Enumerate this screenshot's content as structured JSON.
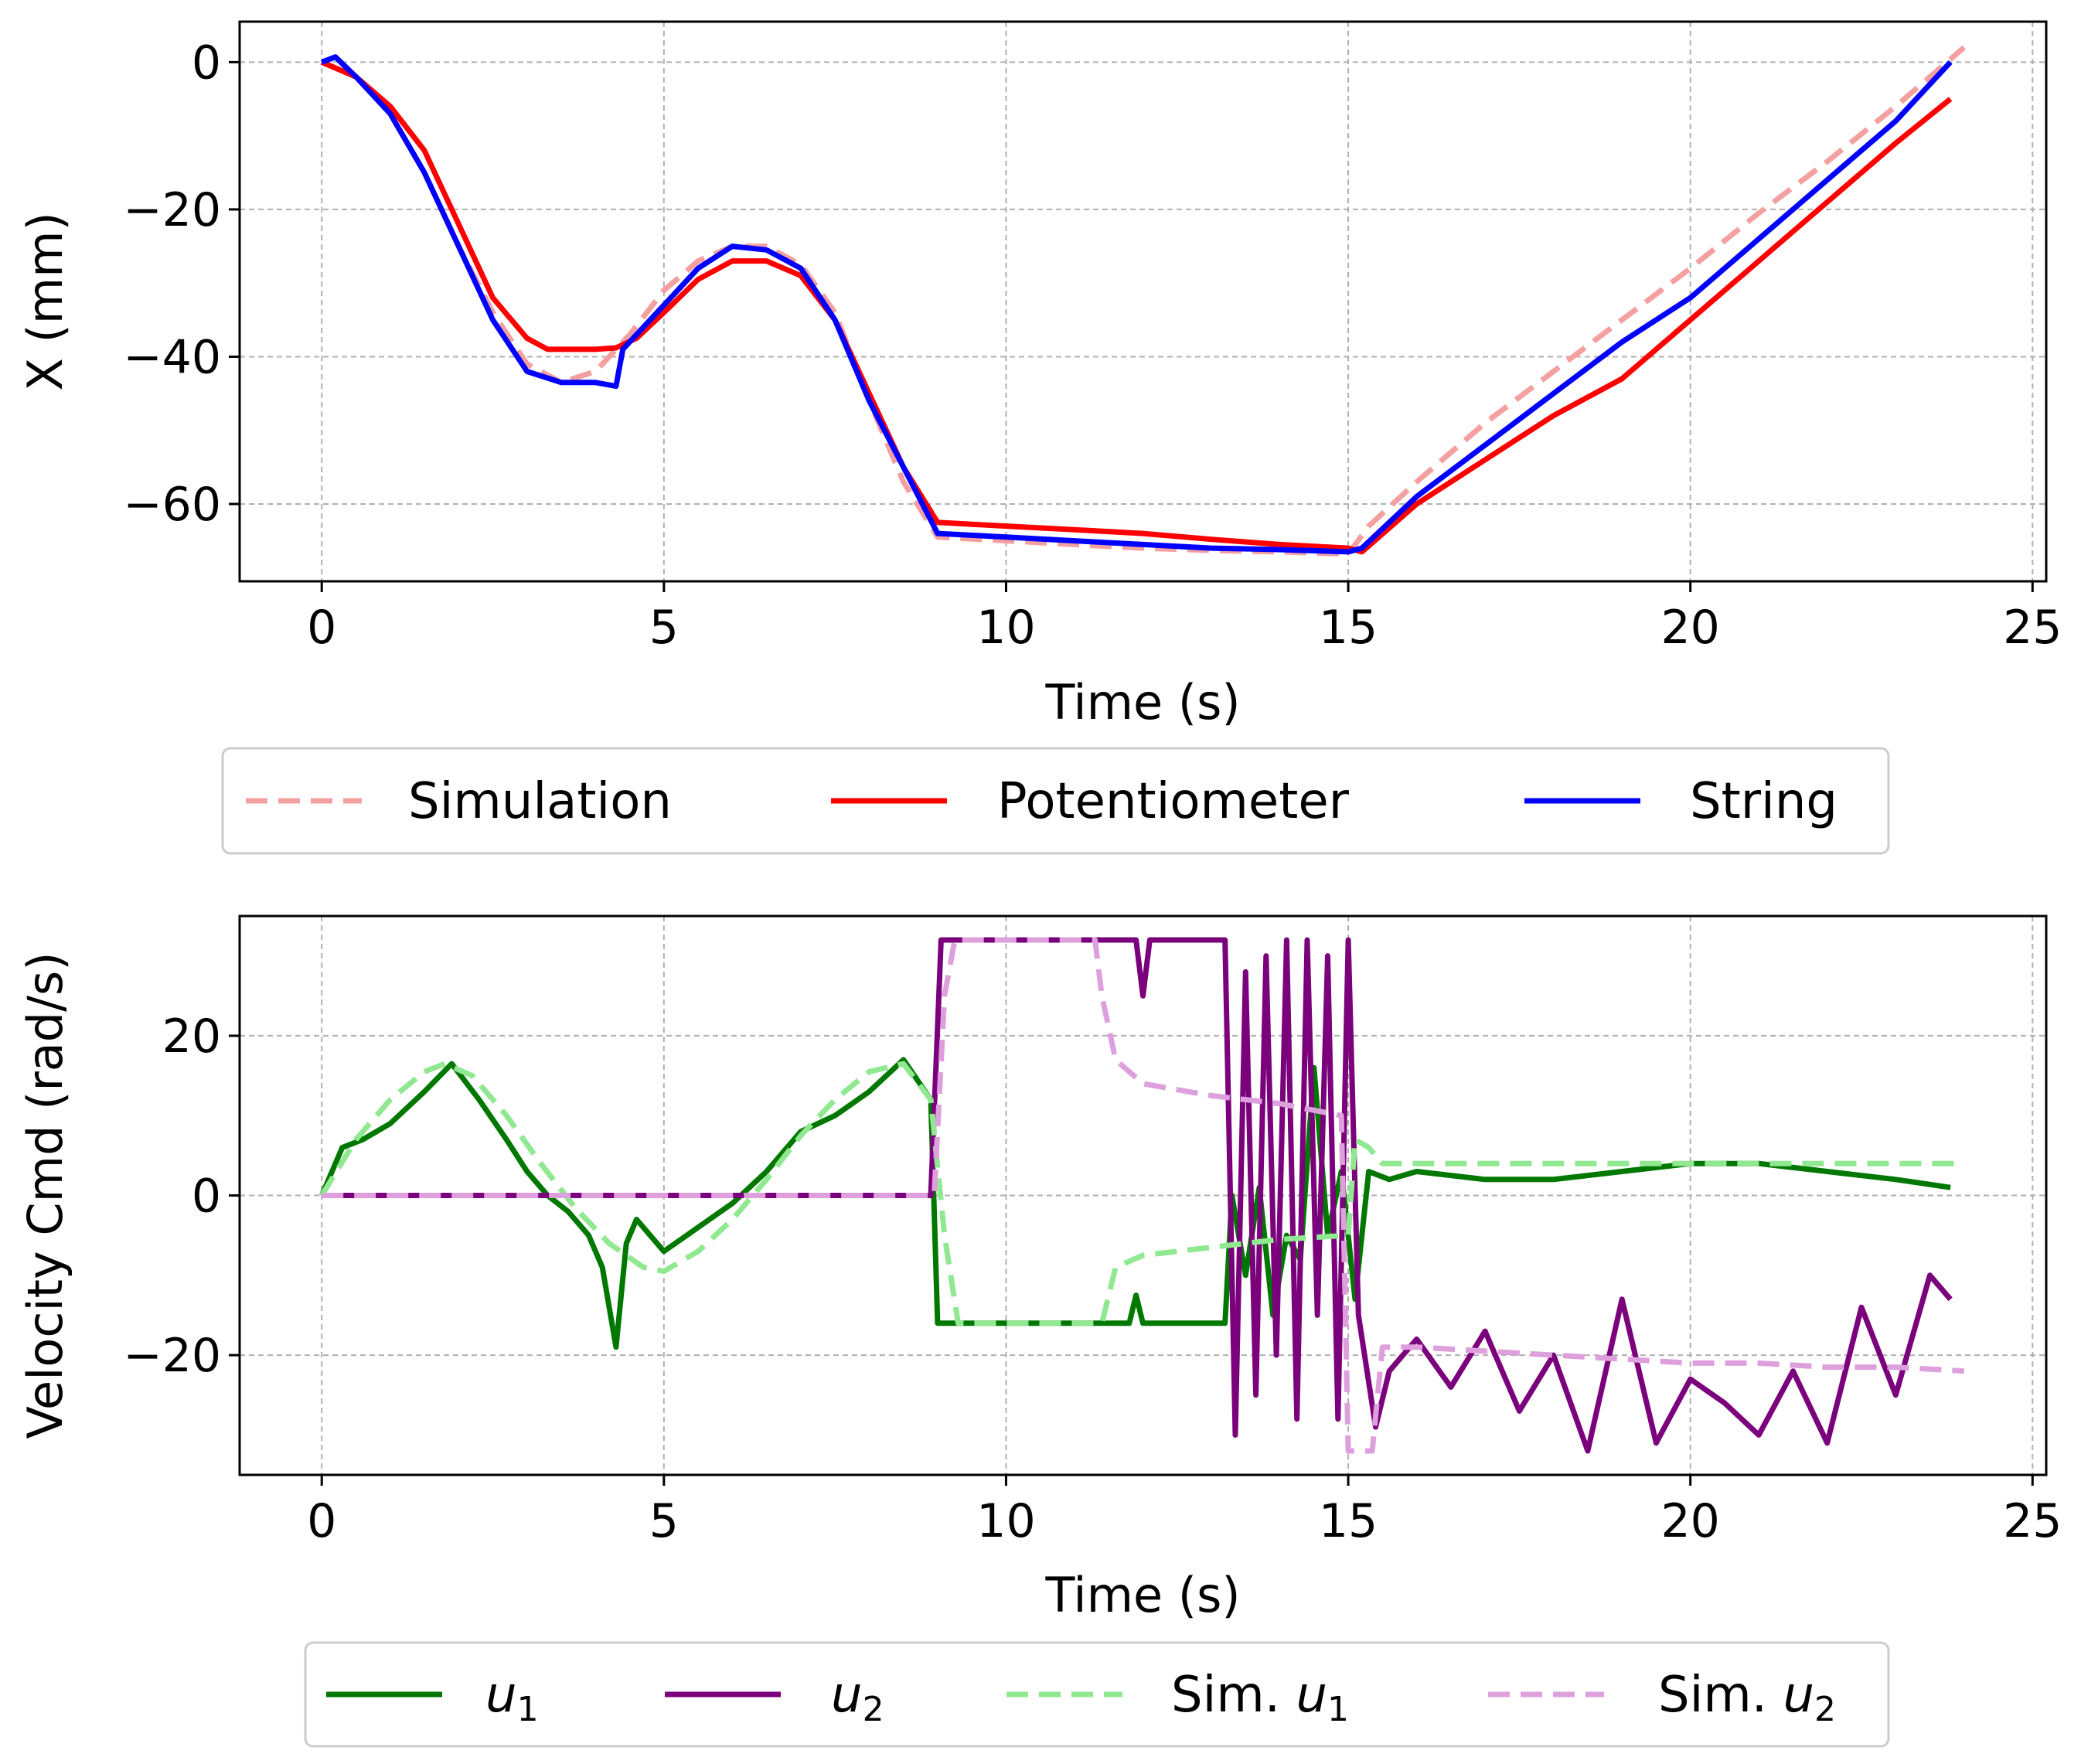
{
  "chart_data": [
    {
      "type": "line",
      "xlabel": "Time (s)",
      "ylabel": "X (mm)",
      "xlim": [
        -1.2,
        25.2
      ],
      "ylim": [
        -70.5,
        5.5
      ],
      "xticks": [
        0,
        5,
        10,
        15,
        20,
        25
      ],
      "xtick_labels": [
        "0",
        "5",
        "10",
        "15",
        "20",
        "25"
      ],
      "yticks": [
        0,
        -20,
        -40,
        -60
      ],
      "ytick_labels": [
        "0",
        "−20",
        "−40",
        "−60"
      ],
      "grid": true,
      "legend_position": "below",
      "series": [
        {
          "name": "Simulation",
          "color": "#f4a0a0",
          "style": "dashed",
          "x": [
            0,
            0.5,
            1,
            1.5,
            2,
            2.5,
            3,
            3.5,
            4,
            4.5,
            5,
            5.5,
            6,
            6.5,
            7,
            7.5,
            8,
            8.5,
            9,
            10,
            11,
            12,
            13,
            14,
            15,
            15.3,
            16,
            17,
            18,
            19,
            20,
            21,
            22,
            23,
            24
          ],
          "y": [
            0,
            -2,
            -7,
            -15,
            -25,
            -34,
            -41,
            -43.5,
            -42,
            -37,
            -31,
            -27,
            -25,
            -25,
            -27.5,
            -34,
            -46,
            -57,
            -64.5,
            -65,
            -65.5,
            -66,
            -66.3,
            -66.5,
            -66.8,
            -63,
            -57,
            -49,
            -42,
            -35,
            -28,
            -20.5,
            -13.5,
            -6,
            2
          ]
        },
        {
          "name": "Potentiometer",
          "color": "#ff0000",
          "style": "solid",
          "x": [
            0,
            0.5,
            1,
            1.5,
            2,
            2.5,
            3,
            3.3,
            3.6,
            4,
            4.3,
            4.6,
            5,
            5.5,
            6,
            6.5,
            7,
            7.5,
            8,
            8.5,
            9,
            10,
            11,
            12,
            13,
            14,
            15,
            15.2,
            16,
            17,
            18,
            19,
            20,
            21,
            22,
            23,
            23.8
          ],
          "y": [
            0,
            -2,
            -6,
            -12,
            -22,
            -32,
            -37.5,
            -39,
            -39,
            -39,
            -38.8,
            -37.5,
            -34,
            -29.5,
            -27,
            -27,
            -29,
            -35,
            -45,
            -55,
            -62.5,
            -63,
            -63.5,
            -64,
            -64.8,
            -65.5,
            -66,
            -66.5,
            -60,
            -54,
            -48,
            -43,
            -35,
            -27,
            -19,
            -11,
            -5
          ]
        },
        {
          "name": "String",
          "color": "#0000ff",
          "style": "solid",
          "x": [
            0,
            0.2,
            0.5,
            1,
            1.5,
            2,
            2.5,
            3,
            3.5,
            4,
            4.3,
            4.4,
            4.7,
            5,
            5.5,
            6,
            6.5,
            7,
            7.5,
            8,
            8.5,
            9,
            10,
            11,
            12,
            13,
            14,
            15,
            15.2,
            16,
            17,
            18,
            19,
            20,
            21,
            22,
            23,
            23.8
          ],
          "y": [
            0,
            0.7,
            -2,
            -7,
            -15,
            -25,
            -35,
            -42,
            -43.5,
            -43.5,
            -44,
            -39,
            -36,
            -33,
            -28,
            -25,
            -25.5,
            -28,
            -35,
            -46,
            -55,
            -64,
            -64.5,
            -65,
            -65.5,
            -66,
            -66.2,
            -66.5,
            -66,
            -59,
            -52,
            -45,
            -38,
            -32,
            -24,
            -16,
            -8,
            0
          ]
        }
      ]
    },
    {
      "type": "line",
      "xlabel": "Time (s)",
      "ylabel": "Velocity Cmd (rad/s)",
      "xlim": [
        -1.2,
        25.2
      ],
      "ylim": [
        -35,
        35
      ],
      "xticks": [
        0,
        5,
        10,
        15,
        20,
        25
      ],
      "xtick_labels": [
        "0",
        "5",
        "10",
        "15",
        "20",
        "25"
      ],
      "yticks": [
        20,
        0,
        -20
      ],
      "ytick_labels": [
        "20",
        "0",
        "−20"
      ],
      "grid": true,
      "legend_position": "below",
      "series": [
        {
          "name": "u",
          "subscript": "1",
          "color": "#007800",
          "style": "solid",
          "x": [
            0,
            0.3,
            0.6,
            1,
            1.5,
            1.9,
            2.3,
            2.7,
            3,
            3.3,
            3.6,
            3.9,
            4.1,
            4.3,
            4.45,
            4.6,
            5,
            5.5,
            6,
            6.5,
            7,
            7.5,
            8,
            8.5,
            8.9,
            9,
            10,
            11,
            11.8,
            11.9,
            12,
            13,
            13.2,
            13.3,
            13.5,
            13.7,
            13.9,
            14.1,
            14.3,
            14.5,
            14.7,
            14.9,
            15.1,
            15.3,
            15.6,
            16,
            17,
            18,
            19,
            20,
            21,
            22,
            23,
            23.8
          ],
          "y": [
            0,
            6,
            7,
            9,
            13,
            16.5,
            12,
            7,
            3,
            0,
            -2,
            -5,
            -9,
            -19,
            -6,
            -3,
            -7,
            -4,
            -1,
            3,
            8,
            10,
            13,
            17,
            12,
            -16,
            -16,
            -16,
            -16,
            -12.5,
            -16,
            -16,
            -16,
            0,
            -10,
            1,
            -15,
            -5,
            -8,
            16,
            -5,
            3,
            -13,
            3,
            2,
            3,
            2,
            2,
            3,
            4,
            4,
            3,
            2,
            1
          ]
        },
        {
          "name": "u",
          "subscript": "2",
          "color": "#7b007b",
          "style": "solid",
          "x": [
            0,
            1,
            2,
            3,
            4,
            5,
            6,
            7,
            8,
            8.9,
            9.05,
            10,
            11,
            11.9,
            12,
            12.1,
            13,
            13.2,
            13.35,
            13.5,
            13.65,
            13.8,
            13.95,
            14.1,
            14.25,
            14.4,
            14.55,
            14.7,
            14.85,
            15,
            15.15,
            15.4,
            15.6,
            16,
            16.5,
            17,
            17.5,
            18,
            18.5,
            19,
            19.5,
            20,
            20.5,
            21,
            21.5,
            22,
            22.5,
            23,
            23.5,
            23.8
          ],
          "y": [
            0,
            0,
            0,
            0,
            0,
            0,
            0,
            0,
            0,
            0,
            32,
            32,
            32,
            32,
            25,
            32,
            32,
            32,
            -30,
            28,
            -25,
            30,
            -20,
            32,
            -28,
            32,
            -15,
            30,
            -28,
            32,
            -15,
            -29,
            -22,
            -18,
            -24,
            -17,
            -27,
            -20,
            -32,
            -13,
            -31,
            -23,
            -26,
            -30,
            -22,
            -31,
            -14,
            -25,
            -10,
            -13
          ]
        },
        {
          "name": "Sim. u",
          "subscript": "1",
          "color": "#90e890",
          "style": "dashed",
          "x": [
            0,
            0.5,
            1,
            1.5,
            1.8,
            2.2,
            2.7,
            3.2,
            3.7,
            4.2,
            4.7,
            5,
            5.5,
            6,
            6.5,
            7,
            7.5,
            8,
            8.5,
            8.9,
            9.1,
            9.3,
            10,
            11,
            11.4,
            11.6,
            12,
            13,
            14,
            15,
            15.1,
            15.3,
            15.5,
            16,
            17,
            18,
            19,
            20,
            21,
            22,
            23,
            24
          ],
          "y": [
            0,
            7,
            12,
            15.5,
            16.5,
            15,
            10,
            4,
            -1.5,
            -6,
            -9,
            -9.5,
            -7,
            -3,
            2,
            7.5,
            12,
            15.5,
            16.5,
            12,
            -5,
            -16,
            -16,
            -16,
            -16,
            -9,
            -7.5,
            -6.5,
            -5.5,
            -5,
            7,
            6,
            4,
            4,
            4,
            4,
            4,
            4,
            4,
            4,
            4,
            4
          ]
        },
        {
          "name": "Sim. u",
          "subscript": "2",
          "color": "#dda0dd",
          "style": "dashed",
          "x": [
            0,
            1,
            2,
            3,
            4,
            5,
            6,
            7,
            8,
            8.95,
            9.1,
            9.25,
            10,
            11,
            11.3,
            11.4,
            11.6,
            12,
            13,
            14,
            14.9,
            15,
            15.2,
            15.35,
            15.5,
            16,
            17,
            18,
            19,
            20,
            21,
            22,
            23,
            24
          ],
          "y": [
            0,
            0,
            0,
            0,
            0,
            0,
            0,
            0,
            0,
            0,
            25,
            32,
            32,
            32,
            32,
            25,
            17,
            14,
            12.5,
            11.5,
            10,
            -32,
            -32,
            -32,
            -19,
            -19,
            -19.5,
            -20,
            -20.5,
            -21,
            -21,
            -21.5,
            -21.5,
            -22
          ]
        }
      ]
    }
  ]
}
